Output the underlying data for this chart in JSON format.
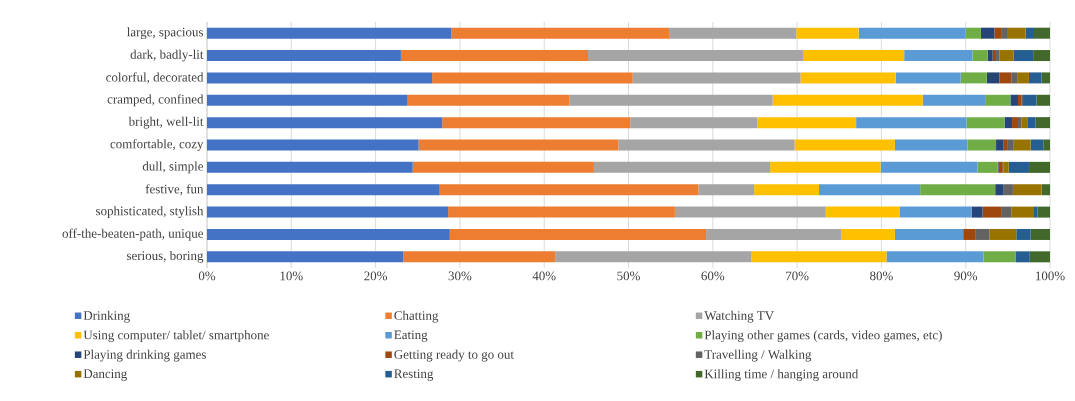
{
  "chart_data": {
    "type": "bar",
    "orientation": "horizontal",
    "stacked": true,
    "grid": "x",
    "legend": "bottom",
    "categories": [
      "large, spacious",
      "dark, badly-lit",
      "colorful, decorated",
      "cramped, confined",
      "bright, well-lit",
      "comfortable, cozy",
      "dull, simple",
      "festive, fun",
      "sophisticated, stylish",
      "off-the-beaten-path, unique",
      "serious, boring"
    ],
    "xlim": [
      0,
      100
    ],
    "xticks": [
      {
        "value": 0,
        "label": "0%"
      },
      {
        "value": 10,
        "label": "10%"
      },
      {
        "value": 20,
        "label": "20%"
      },
      {
        "value": 30,
        "label": "30%"
      },
      {
        "value": 40,
        "label": "40%"
      },
      {
        "value": 50,
        "label": "50%"
      },
      {
        "value": 60,
        "label": "60%"
      },
      {
        "value": 70,
        "label": "70%"
      },
      {
        "value": 80,
        "label": "80%"
      },
      {
        "value": 90,
        "label": "90%"
      },
      {
        "value": 100,
        "label": "100%"
      }
    ],
    "series": [
      {
        "name": "Drinking",
        "color": "#4472c4",
        "values": [
          29.0,
          23.0,
          26.7,
          23.8,
          27.9,
          25.1,
          24.4,
          27.6,
          28.6,
          28.8,
          23.3
        ]
      },
      {
        "name": "Chatting",
        "color": "#ed7d31",
        "values": [
          25.8,
          22.2,
          23.8,
          19.2,
          22.3,
          23.7,
          21.5,
          30.7,
          26.9,
          30.4,
          18.0
        ]
      },
      {
        "name": "Watching TV",
        "color": "#a5a5a5",
        "values": [
          15.1,
          25.5,
          19.9,
          24.1,
          15.1,
          20.9,
          20.9,
          6.6,
          17.9,
          16.0,
          23.3
        ]
      },
      {
        "name": "Using computer/ tablet/ smartphone",
        "color": "#ffc000",
        "values": [
          7.4,
          12.0,
          11.3,
          17.8,
          11.7,
          11.9,
          13.1,
          7.7,
          8.8,
          6.4,
          16.0
        ]
      },
      {
        "name": "Eating",
        "color": "#5b9bd5",
        "values": [
          12.7,
          8.1,
          7.7,
          7.4,
          13.1,
          8.6,
          11.5,
          12.0,
          8.5,
          8.1,
          11.5
        ]
      },
      {
        "name": "Playing other games (cards, video games, etc)",
        "color": "#70ad47",
        "values": [
          1.8,
          1.8,
          3.1,
          3.0,
          4.5,
          3.4,
          2.4,
          8.9,
          0,
          0,
          3.8
        ]
      },
      {
        "name": "Playing drinking games",
        "color": "#264478",
        "values": [
          1.6,
          0.6,
          1.5,
          0.9,
          0.9,
          0.9,
          0.1,
          1.0,
          1.3,
          0,
          0
        ]
      },
      {
        "name": "Getting ready to go out",
        "color": "#9e480e",
        "values": [
          0.8,
          0.4,
          1.4,
          0.4,
          0.7,
          0.5,
          0.5,
          0,
          2.2,
          1.5,
          0
        ]
      },
      {
        "name": "Travelling / Walking",
        "color": "#636363",
        "values": [
          0.7,
          0.4,
          0.7,
          0.2,
          0.4,
          0.7,
          0.1,
          1.1,
          1.2,
          1.6,
          0
        ]
      },
      {
        "name": "Dancing",
        "color": "#997300",
        "values": [
          2.2,
          1.7,
          1.4,
          0,
          0.7,
          2.0,
          0.6,
          3.4,
          2.7,
          3.2,
          0
        ]
      },
      {
        "name": "Resting",
        "color": "#255e91",
        "values": [
          1.0,
          2.3,
          1.5,
          1.6,
          1.0,
          1.5,
          2.4,
          0,
          0.4,
          1.7,
          1.7
        ]
      },
      {
        "name": "Killing time / hanging around",
        "color": "#43682b",
        "values": [
          1.9,
          2.0,
          1.0,
          1.6,
          1.7,
          0.8,
          2.5,
          1.0,
          1.5,
          2.3,
          2.4
        ]
      }
    ]
  }
}
